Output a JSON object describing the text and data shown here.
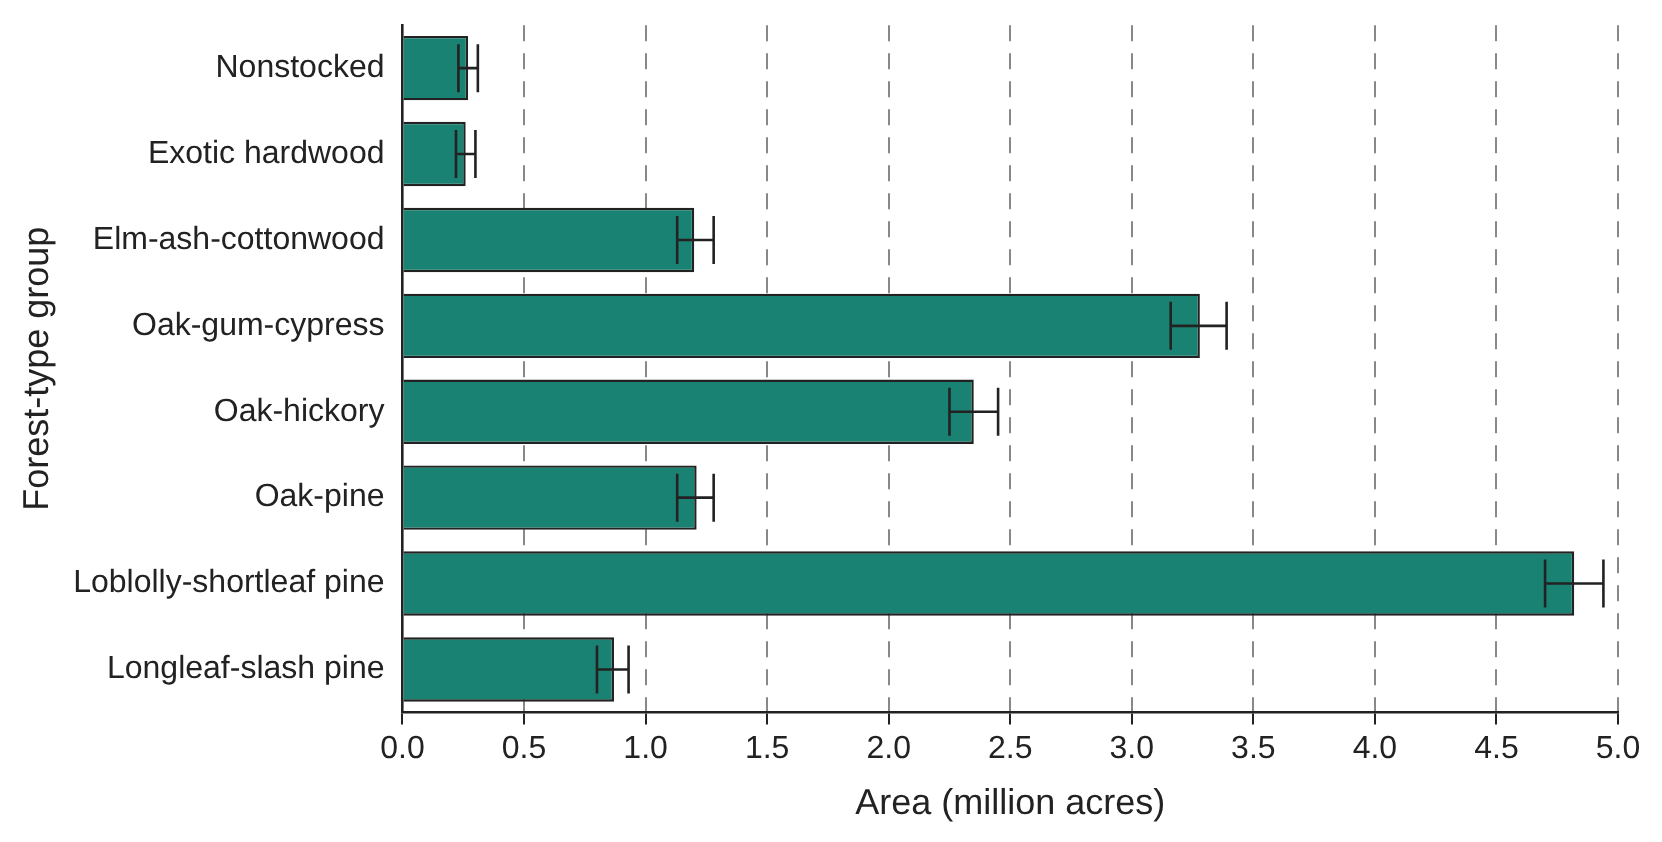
{
  "chart_data": {
    "type": "bar",
    "orientation": "horizontal",
    "xlabel": "Area (million acres)",
    "ylabel": "Forest-type group",
    "categories": [
      "Nonstocked",
      "Exotic hardwood",
      "Elm-ash-cottonwood",
      "Oak-gum-cypress",
      "Oak-hickory",
      "Oak-pine",
      "Loblolly-shortleaf pine",
      "Longleaf-slash pine"
    ],
    "values": [
      0.27,
      0.26,
      1.2,
      3.28,
      2.35,
      1.21,
      4.82,
      0.87
    ],
    "errors": [
      [
        0.23,
        0.31
      ],
      [
        0.22,
        0.3
      ],
      [
        1.13,
        1.28
      ],
      [
        3.16,
        3.39
      ],
      [
        2.25,
        2.45
      ],
      [
        1.13,
        1.28
      ],
      [
        4.7,
        4.94
      ],
      [
        0.8,
        0.93
      ]
    ],
    "color": "#1a8272",
    "xlim": [
      0,
      5
    ],
    "xticks": [
      {
        "value": 0,
        "label": "0.0"
      },
      0.5,
      {
        "value": 1,
        "label": "1.0"
      },
      1.5,
      {
        "value": 2,
        "label": "2.0"
      },
      2.5,
      {
        "value": 3,
        "label": "3.0"
      },
      3.5,
      {
        "value": 4,
        "label": "4.0"
      },
      4.5,
      {
        "value": 5,
        "label": "5.0"
      }
    ],
    "grid": "x",
    "line_style": "dashed",
    "legend": false
  }
}
